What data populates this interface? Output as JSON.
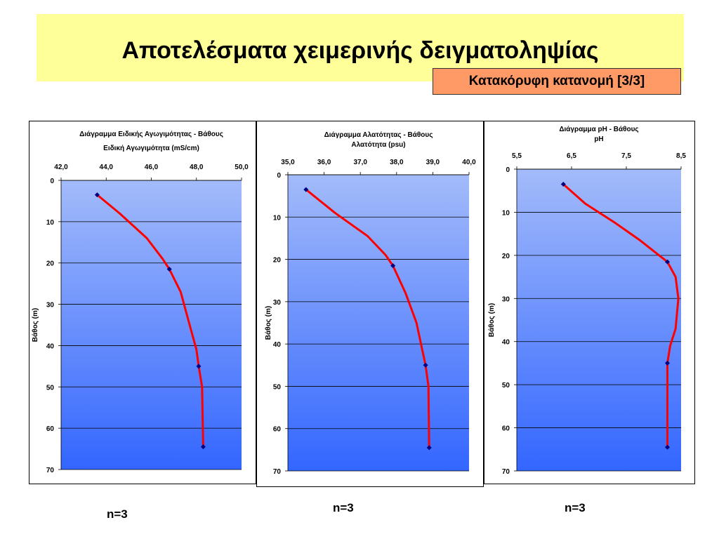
{
  "header": {
    "title": "Αποτελέσματα χειμερινής δειγματοληψίας",
    "subtitle": "Κατακόρυφη κατανομή [3/3]"
  },
  "colors": {
    "title_band": "#ffff99",
    "subtitle_box": "#ff9966",
    "plot_top": "#a3bbfa",
    "plot_bottom": "#3366ff",
    "line": "#ff0000",
    "marker": "#000080"
  },
  "chart_data": [
    {
      "type": "line",
      "title": "Διάγραμμα Ειδικής Αγωγιμότητας - Βάθους",
      "xlabel": "Ειδική Αγωγιμότητα (mS/cm)",
      "ylabel": "Βάθος (m)",
      "xlim": [
        42,
        50
      ],
      "ylim": [
        70,
        0
      ],
      "x_ticks": [
        "42,0",
        "44,0",
        "46,0",
        "48,0",
        "50,0"
      ],
      "y_ticks": [
        "0",
        "10",
        "20",
        "30",
        "40",
        "50",
        "60",
        "70"
      ],
      "series": [
        {
          "points": [
            [
              43.6,
              3.5
            ],
            [
              46.8,
              21.5
            ],
            [
              48.1,
              45
            ],
            [
              48.3,
              64.5
            ]
          ],
          "curve": [
            [
              43.6,
              3.5
            ],
            [
              44.6,
              8
            ],
            [
              45.8,
              14
            ],
            [
              46.5,
              19
            ],
            [
              46.8,
              21.5
            ],
            [
              47.3,
              27
            ],
            [
              47.7,
              35
            ],
            [
              48.0,
              41
            ],
            [
              48.1,
              45
            ],
            [
              48.25,
              50
            ],
            [
              48.3,
              64.5
            ]
          ]
        }
      ],
      "footer": "n=3"
    },
    {
      "type": "line",
      "title": "Διάγραμμα Αλατότητας - Βάθους",
      "xlabel": "Αλατότητα (psu)",
      "ylabel": "Βάθος (m)",
      "xlim": [
        35,
        40
      ],
      "ylim": [
        70,
        0
      ],
      "x_ticks": [
        "35,0",
        "36,0",
        "37,0",
        "38,0",
        "39,0",
        "40,0"
      ],
      "y_ticks": [
        "0",
        "10",
        "20",
        "30",
        "40",
        "50",
        "60",
        "70"
      ],
      "series": [
        {
          "points": [
            [
              35.5,
              3.5
            ],
            [
              37.9,
              21.5
            ],
            [
              38.8,
              45
            ],
            [
              38.9,
              64.5
            ]
          ],
          "curve": [
            [
              35.5,
              3.5
            ],
            [
              36.3,
              9
            ],
            [
              37.2,
              14.5
            ],
            [
              37.7,
              19
            ],
            [
              37.9,
              21.5
            ],
            [
              38.25,
              28
            ],
            [
              38.55,
              35
            ],
            [
              38.7,
              41
            ],
            [
              38.8,
              45
            ],
            [
              38.88,
              50
            ],
            [
              38.9,
              64.5
            ]
          ]
        }
      ],
      "footer": "n=3"
    },
    {
      "type": "line",
      "title": "Διάγραμμα pH - Βάθους",
      "xlabel": "pH",
      "ylabel": "Βάθος (m)",
      "xlim": [
        5.5,
        8.5
      ],
      "ylim": [
        70,
        0
      ],
      "x_ticks": [
        "5,5",
        "6,5",
        "7,5",
        "8,5"
      ],
      "y_ticks": [
        "0",
        "10",
        "20",
        "30",
        "40",
        "50",
        "60",
        "70"
      ],
      "series": [
        {
          "points": [
            [
              6.35,
              3.5
            ],
            [
              8.25,
              21.5
            ],
            [
              8.25,
              45
            ],
            [
              8.25,
              64.5
            ]
          ],
          "curve": [
            [
              6.35,
              3.5
            ],
            [
              6.75,
              8
            ],
            [
              7.3,
              12.5
            ],
            [
              7.75,
              16.5
            ],
            [
              8.1,
              20
            ],
            [
              8.25,
              21.5
            ],
            [
              8.4,
              25
            ],
            [
              8.45,
              30
            ],
            [
              8.4,
              37
            ],
            [
              8.3,
              41
            ],
            [
              8.25,
              45
            ],
            [
              8.25,
              55
            ],
            [
              8.25,
              64.5
            ]
          ]
        }
      ],
      "footer": "n=3"
    }
  ]
}
